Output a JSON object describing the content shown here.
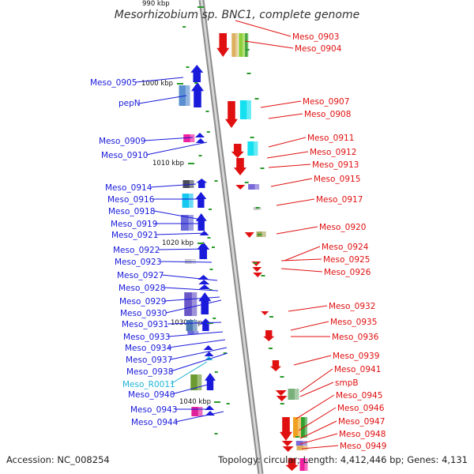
{
  "title": "Mesorhizobium sp. BNC1, complete genome",
  "accession": "Accession: NC_008254",
  "topology": "Topology: circular; Length: 4,412,446 bp; Genes: 4,131",
  "kbp_marks": [
    {
      "text": "990 kbp"
    },
    {
      "text": "1000 kbp"
    },
    {
      "text": "1010 kbp"
    },
    {
      "text": "1020 kbp"
    },
    {
      "text": "1030 kbp"
    },
    {
      "text": "1040 kbp"
    }
  ],
  "left_labels": [
    {
      "text": "Meso_0905",
      "color": "#1a1adb"
    },
    {
      "text": "pepN",
      "color": "#1a1adb"
    },
    {
      "text": "Meso_0909",
      "color": "#1a1adb"
    },
    {
      "text": "Meso_0910",
      "color": "#1a1adb"
    },
    {
      "text": "Meso_0914",
      "color": "#1a1adb"
    },
    {
      "text": "Meso_0916",
      "color": "#1a1adb"
    },
    {
      "text": "Meso_0918",
      "color": "#1a1adb"
    },
    {
      "text": "Meso_0919",
      "color": "#1a1adb"
    },
    {
      "text": "Meso_0921",
      "color": "#1a1adb"
    },
    {
      "text": "Meso_0922",
      "color": "#1a1adb"
    },
    {
      "text": "Meso_0923",
      "color": "#1a1adb"
    },
    {
      "text": "Meso_0927",
      "color": "#1a1adb"
    },
    {
      "text": "Meso_0928",
      "color": "#1a1adb"
    },
    {
      "text": "Meso_0929",
      "color": "#1a1adb"
    },
    {
      "text": "Meso_0930",
      "color": "#1a1adb"
    },
    {
      "text": "Meso_0931",
      "color": "#1a1adb"
    },
    {
      "text": "Meso_0933",
      "color": "#1a1adb"
    },
    {
      "text": "Meso_0934",
      "color": "#1a1adb"
    },
    {
      "text": "Meso_0937",
      "color": "#1a1adb"
    },
    {
      "text": "Meso_0938",
      "color": "#1a1adb"
    },
    {
      "text": "Meso_R0011",
      "color": "#22b4d6"
    },
    {
      "text": "Meso_0940",
      "color": "#1a1adb"
    },
    {
      "text": "Meso_0943",
      "color": "#1a1adb"
    },
    {
      "text": "Meso_0944",
      "color": "#1a1adb"
    }
  ],
  "right_labels": [
    {
      "text": "Meso_0903",
      "color": "#e01010"
    },
    {
      "text": "Meso_0904",
      "color": "#e01010"
    },
    {
      "text": "Meso_0907",
      "color": "#e01010"
    },
    {
      "text": "Meso_0908",
      "color": "#e01010"
    },
    {
      "text": "Meso_0911",
      "color": "#e01010"
    },
    {
      "text": "Meso_0912",
      "color": "#e01010"
    },
    {
      "text": "Meso_0913",
      "color": "#e01010"
    },
    {
      "text": "Meso_0915",
      "color": "#e01010"
    },
    {
      "text": "Meso_0917",
      "color": "#e01010"
    },
    {
      "text": "Meso_0920",
      "color": "#e01010"
    },
    {
      "text": "Meso_0924",
      "color": "#e01010"
    },
    {
      "text": "Meso_0925",
      "color": "#e01010"
    },
    {
      "text": "Meso_0926",
      "color": "#e01010"
    },
    {
      "text": "Meso_0932",
      "color": "#e01010"
    },
    {
      "text": "Meso_0935",
      "color": "#e01010"
    },
    {
      "text": "Meso_0936",
      "color": "#e01010"
    },
    {
      "text": "Meso_0939",
      "color": "#e01010"
    },
    {
      "text": "Meso_0941",
      "color": "#e01010"
    },
    {
      "text": "smpB",
      "color": "#e01010"
    },
    {
      "text": "Meso_0945",
      "color": "#e01010"
    },
    {
      "text": "Meso_0946",
      "color": "#e01010"
    },
    {
      "text": "Meso_0947",
      "color": "#e01010"
    },
    {
      "text": "Meso_0948",
      "color": "#e01010"
    },
    {
      "text": "Meso_0949",
      "color": "#e01010"
    }
  ],
  "colors": {
    "backbone": "#9a9a9a",
    "reverse_strand": "#1a1adb",
    "forward_strand": "#e01010",
    "gc_ticks": "#2a9a2a"
  }
}
